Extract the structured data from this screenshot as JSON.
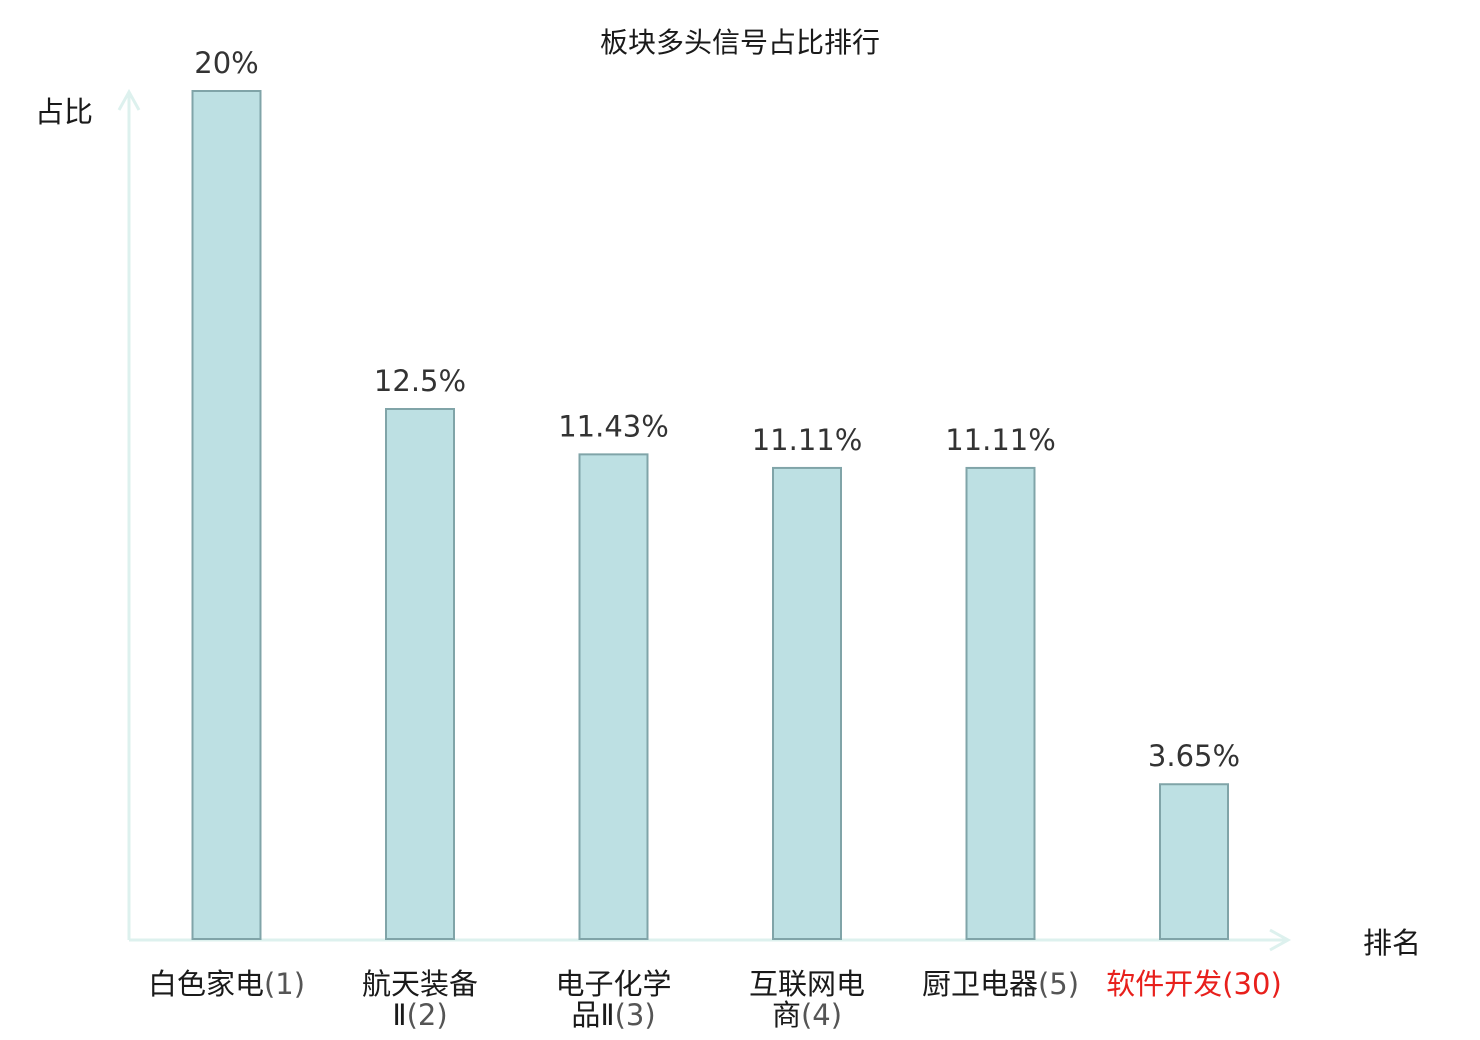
{
  "chart_data": {
    "type": "bar",
    "title": "板块多头信号占比排行",
    "xlabel": "排名",
    "ylabel": "占比",
    "ylim": [
      0,
      20
    ],
    "grid": false,
    "legend": "none",
    "categories": [
      {
        "lines": [
          "白色家电"
        ],
        "rank": "(1)",
        "highlight": false
      },
      {
        "lines": [
          "航天装备",
          "Ⅱ"
        ],
        "rank": "(2)",
        "highlight": false
      },
      {
        "lines": [
          "电子化学",
          "品Ⅱ"
        ],
        "rank": "(3)",
        "highlight": false
      },
      {
        "lines": [
          "互联网电",
          "商"
        ],
        "rank": "(4)",
        "highlight": false
      },
      {
        "lines": [
          "厨卫电器"
        ],
        "rank": "(5)",
        "highlight": false
      },
      {
        "lines": [
          "软件开发"
        ],
        "rank": "(30)",
        "highlight": true
      }
    ],
    "values": [
      20,
      12.5,
      11.43,
      11.11,
      11.11,
      3.65
    ],
    "value_labels": [
      "20%",
      "12.5%",
      "11.43%",
      "11.11%",
      "11.11%",
      "3.65%"
    ],
    "colors": {
      "bar_fill": "#bde0e3",
      "bar_stroke": "#80a4a8",
      "axis": "#ddf1ee",
      "text": "#1a1a1a",
      "rank_text": "#555555",
      "value_text": "#333333",
      "highlight": "#e8201c"
    }
  }
}
